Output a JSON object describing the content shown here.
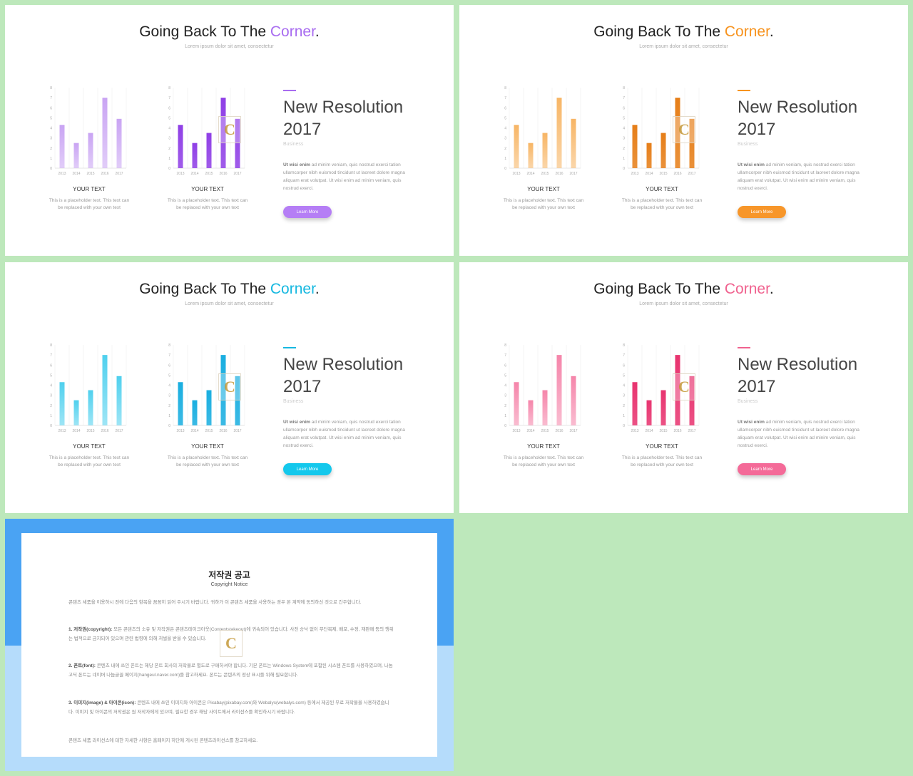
{
  "slides": [
    {
      "title_main": "Going Back To The ",
      "title_accent": "Corner",
      "title_end": ".",
      "subtitle": "Lorem ipsum dolor sit amet, consectetur",
      "accent_color": "#a86cf0",
      "light_color": "#c9a4f3",
      "dark_color": "#8f3fe6",
      "button_color": "#b57ef5",
      "heading_line1": "New Resolution",
      "heading_line2": "2017",
      "tag": "Business",
      "body_bold": "Ut wisi enim",
      "body_rest": " ad minim veniam, quis nostrud exerci tation ullamcorper nibh euismod tincidunt ut laoreet dolore magna aliquam erat volutpat. Ut wisi enim ad minim veniam, quis nostrud exerci.",
      "button_label": "Learn More",
      "items": [
        {
          "label": "YOUR TEXT",
          "desc": "This is a placeholder text. This text can be replaced with your own text"
        },
        {
          "label": "YOUR TEXT",
          "desc": "This is a placeholder text. This text can be replaced with your own text"
        }
      ]
    },
    {
      "title_main": "Going Back To The ",
      "title_accent": "Corner",
      "title_end": ".",
      "subtitle": "Lorem ipsum dolor sit amet, consectetur",
      "accent_color": "#f7931e",
      "light_color": "#f7b565",
      "dark_color": "#e67e18",
      "button_color": "#f7962a",
      "heading_line1": "New Resolution",
      "heading_line2": "2017",
      "tag": "Business",
      "body_bold": "Ut wisi enim",
      "body_rest": " ad minim veniam, quis nostrud exerci tation ullamcorper nibh euismod tincidunt ut laoreet dolore magna aliquam erat volutpat. Ut wisi enim ad minim veniam, quis nostrud exerci.",
      "button_label": "Learn More",
      "items": [
        {
          "label": "YOUR TEXT",
          "desc": "This is a placeholder text. This text can be replaced with your own text"
        },
        {
          "label": "YOUR TEXT",
          "desc": "This is a placeholder text. This text can be replaced with your own text"
        }
      ]
    },
    {
      "title_main": "Going Back To The ",
      "title_accent": "Corner",
      "title_end": ".",
      "subtitle": "Lorem ipsum dolor sit amet, consectetur",
      "accent_color": "#16b8e0",
      "light_color": "#4fd0ee",
      "dark_color": "#19aee0",
      "button_color": "#14c8ec",
      "heading_line1": "New Resolution",
      "heading_line2": "2017",
      "tag": "Business",
      "body_bold": "Ut wisi enim",
      "body_rest": " ad minim veniam, quis nostrud exerci tation ullamcorper nibh euismod tincidunt ut laoreet dolore magna aliquam erat volutpat. Ut wisi enim ad minim veniam, quis nostrud exerci.",
      "button_label": "Learn More",
      "items": [
        {
          "label": "YOUR TEXT",
          "desc": "This is a placeholder text. This text can be replaced with your own text"
        },
        {
          "label": "YOUR TEXT",
          "desc": "This is a placeholder text. This text can be replaced with your own text"
        }
      ]
    },
    {
      "title_main": "Going Back To The ",
      "title_accent": "Corner",
      "title_end": ".",
      "subtitle": "Lorem ipsum dolor sit amet, consectetur",
      "accent_color": "#f0628f",
      "light_color": "#f585aa",
      "dark_color": "#e8336f",
      "button_color": "#f46a98",
      "heading_line1": "New Resolution",
      "heading_line2": "2017",
      "tag": "Business",
      "body_bold": "Ut wisi enim",
      "body_rest": " ad minim veniam, quis nostrud exerci tation ullamcorper nibh euismod tincidunt ut laoreet dolore magna aliquam erat volutpat. Ut wisi enim ad minim veniam, quis nostrud exerci.",
      "button_label": "Learn More",
      "items": [
        {
          "label": "YOUR TEXT",
          "desc": "This is a placeholder text. This text can be replaced with your own text"
        },
        {
          "label": "YOUR TEXT",
          "desc": "This is a placeholder text. This text can be replaced with your own text"
        }
      ]
    }
  ],
  "chart_data": {
    "type": "bar",
    "categories": [
      "2013",
      "2014",
      "2015",
      "2016",
      "2017"
    ],
    "values": [
      4.3,
      2.5,
      3.5,
      7,
      4.9
    ],
    "yticks": [
      "0",
      "1",
      "2",
      "3",
      "4",
      "5",
      "6",
      "7",
      "8"
    ],
    "ylim": [
      0,
      8
    ],
    "grid": true
  },
  "watermark_letter": "C",
  "copyright": {
    "title": "저작권 공고",
    "subtitle": "Copyright Notice",
    "intro": "콘텐츠 세품을 이용하시 전에 다음의 항목을 꼼꼼히 읽어 주시기 바랍니다. 귀하가 이 콘텐츠 세품을 사용하는 경우 본 계약에 동의하신 것으로 간주합니다.",
    "p1_bold": "1. 저작권(copyright):",
    "p1": " 모든 콘텐츠의 소유 및 저작권은 콘텐츠테이크아웃(Contentstakeout)에 귀속되어 있습니다. 사전 승낙 없이 무단복제, 배포, 수정, 재판매 등의 행위는 법적으로 금지되어 있으며 관련 법령에 의해 처벌을 받을 수 있습니다.",
    "p2_bold": "2. 폰트(font):",
    "p2": " 콘텐츠 내에 쓰인 폰트는 해당 폰트 회사의 저작물로 별도로 구매하셔야 합니다. 기본 폰트는 Windows System에 포함된 시스템 폰트를 사용하였으며, 나눔고딕 폰트는 네이버 나눔글꼴 페이지(hangeul.naver.com)를 참고하세요. 폰트는 콘텐츠의 정상 표시를 위해 필요합니다.",
    "p3_bold": "3. 이미지(image) & 아이콘(icon):",
    "p3": " 콘텐츠 내에 쓰인 이미지와 아이콘은 Pixabay(pixabay.com)와 Webalys(webalys.com) 등에서 제공된 무료 저작물을 사용하였습니다. 이미지 및 아이콘의 저작권은 원 저작자에게 있으며, 필요한 경우 해당 사이트에서 라이선스를 확인하시기 바랍니다.",
    "outro": "콘텐츠 세품 라이선스에 대한 자세한 사항은 홈페이지 하단에 게시된 콘텐츠라이선스를 참고하세요."
  }
}
